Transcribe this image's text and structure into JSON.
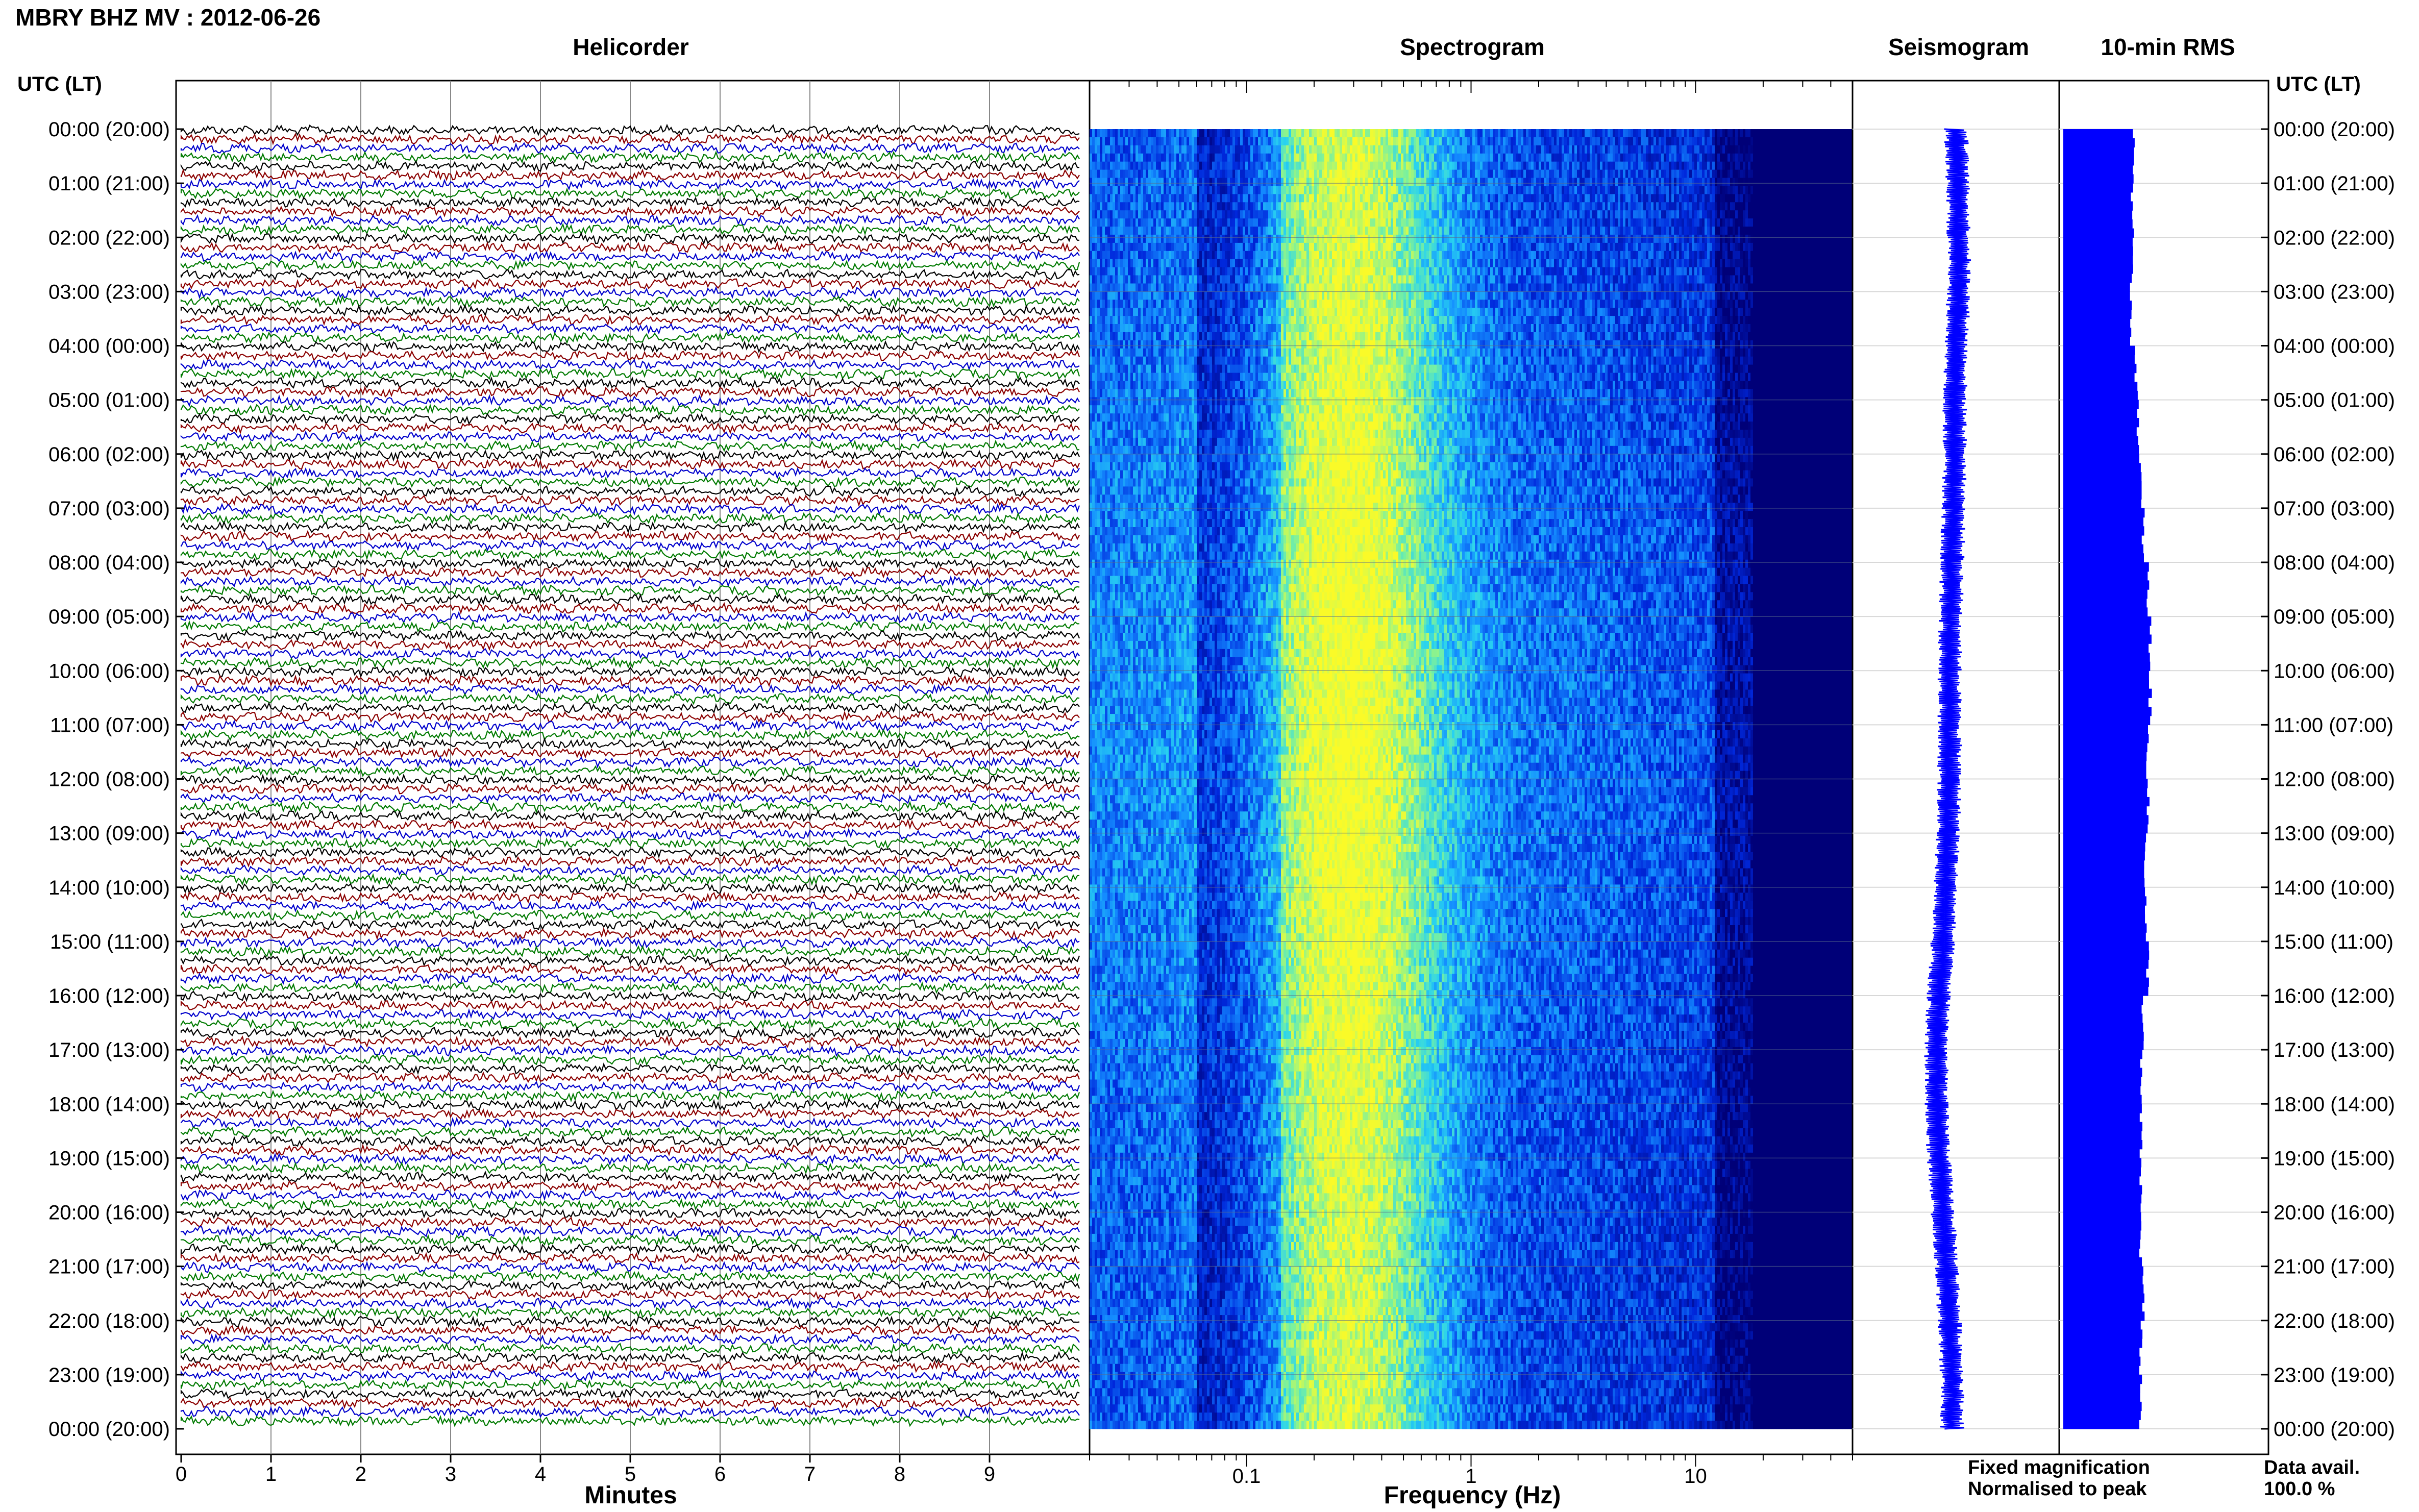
{
  "header": {
    "title": "MBRY BHZ MV : 2012-06-26",
    "utc_label": "UTC (LT)"
  },
  "panels": {
    "helicorder": "Helicorder",
    "spectrogram": "Spectrogram",
    "seismogram": "Seismogram",
    "rms": "10-min RMS"
  },
  "time_labels": [
    "00:00 (20:00)",
    "01:00 (21:00)",
    "02:00 (22:00)",
    "03:00 (23:00)",
    "04:00 (00:00)",
    "05:00 (01:00)",
    "06:00 (02:00)",
    "07:00 (03:00)",
    "08:00 (04:00)",
    "09:00 (05:00)",
    "10:00 (06:00)",
    "11:00 (07:00)",
    "12:00 (08:00)",
    "13:00 (09:00)",
    "14:00 (10:00)",
    "15:00 (11:00)",
    "16:00 (12:00)",
    "17:00 (13:00)",
    "18:00 (14:00)",
    "19:00 (15:00)",
    "20:00 (16:00)",
    "21:00 (17:00)",
    "22:00 (18:00)",
    "23:00 (19:00)",
    "00:00 (20:00)"
  ],
  "helicorder_axis": {
    "xlabel": "Minutes",
    "ticks": [
      "0",
      "1",
      "2",
      "3",
      "4",
      "5",
      "6",
      "7",
      "8",
      "9"
    ],
    "trace_colors": [
      "#000000",
      "#8b0000",
      "#0000cc",
      "#007a00"
    ]
  },
  "spectrogram_axis": {
    "xlabel": "Frequency (Hz)",
    "ticks": [
      "0.1",
      "1",
      "10"
    ],
    "scale": "log",
    "xlim": [
      0.02,
      50
    ]
  },
  "legend": {
    "fixed": "Fixed magnification",
    "fixed_color": "#0000ff",
    "normalised": "Normalised to peak",
    "normalised_color": "#ff0000",
    "data_avail_label": "Data avail.",
    "data_avail_value": "100.0 %"
  },
  "chart_data": {
    "type": "heatmap",
    "rms_per_hour": [
      0.6,
      0.59,
      0.58,
      0.58,
      0.62,
      0.64,
      0.66,
      0.68,
      0.72,
      0.74,
      0.74,
      0.72,
      0.72,
      0.7,
      0.7,
      0.72,
      0.68,
      0.66,
      0.66,
      0.66,
      0.66,
      0.68,
      0.66,
      0.66
    ],
    "seismogram_offset_per_hour": [
      0.55,
      0.56,
      0.57,
      0.57,
      0.55,
      0.54,
      0.54,
      0.53,
      0.52,
      0.51,
      0.5,
      0.5,
      0.5,
      0.49,
      0.47,
      0.45,
      0.42,
      0.4,
      0.4,
      0.42,
      0.45,
      0.48,
      0.5,
      0.52
    ]
  }
}
